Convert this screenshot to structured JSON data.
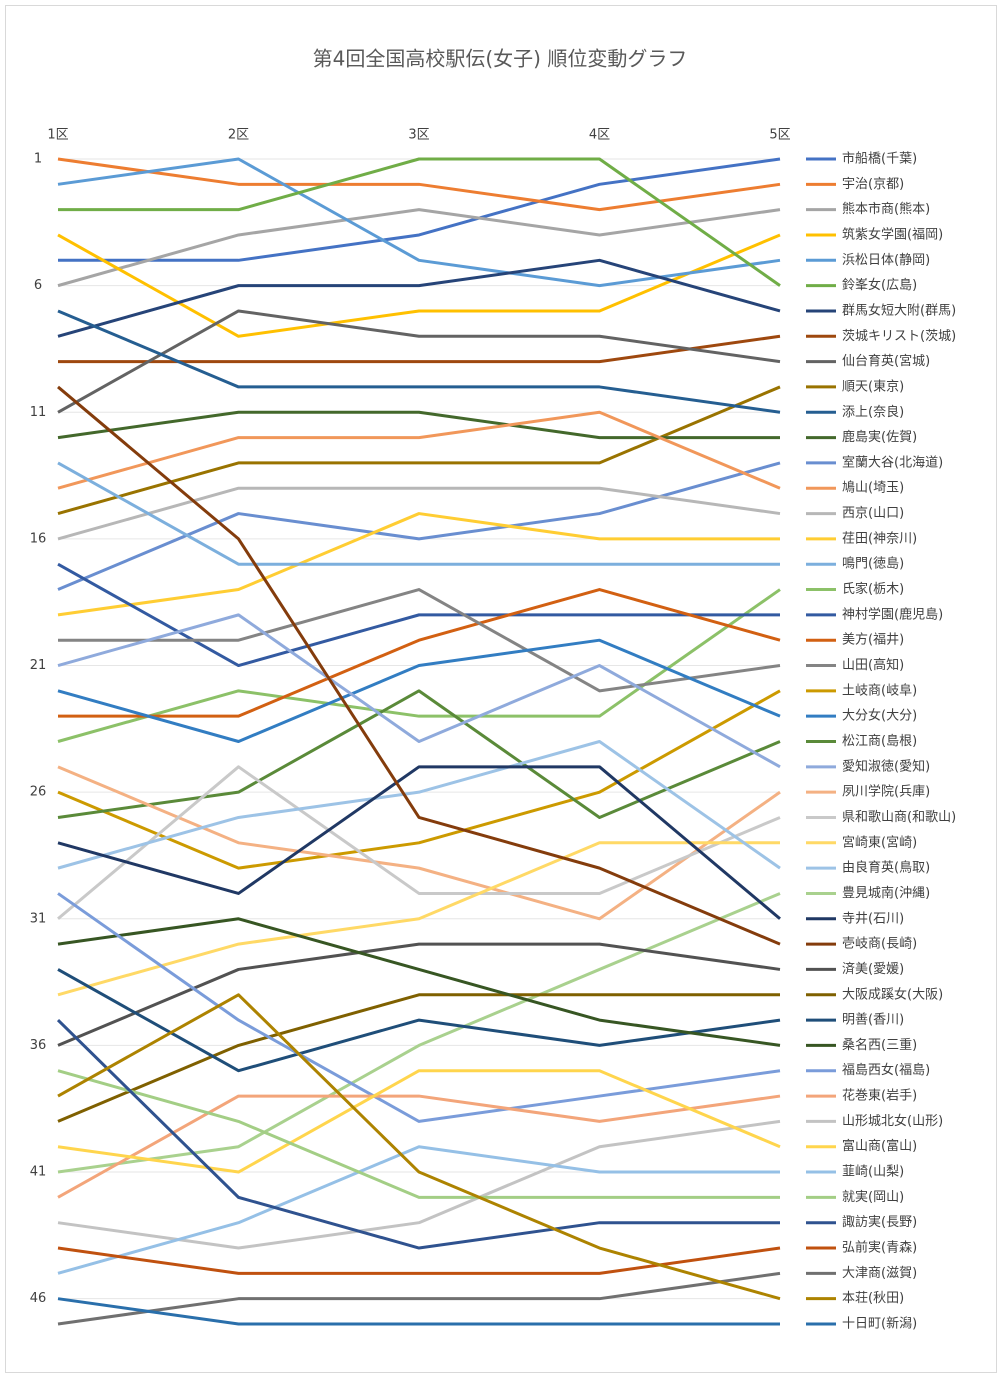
{
  "chart_data": {
    "type": "line",
    "title": "第4回全国高校駅伝(女子) 順位変動グラフ",
    "categories": [
      "1区",
      "2区",
      "3区",
      "4区",
      "5区"
    ],
    "ylim": [
      47,
      1
    ],
    "yticks": [
      1,
      6,
      11,
      16,
      21,
      26,
      31,
      36,
      41,
      46
    ],
    "grid": true,
    "legend": "right",
    "series": [
      {
        "name": "市船橋(千葉)",
        "color": "#4472C4",
        "values": [
          5,
          5,
          4,
          2,
          1
        ]
      },
      {
        "name": "宇治(京都)",
        "color": "#ED7D31",
        "values": [
          1,
          2,
          2,
          3,
          2
        ]
      },
      {
        "name": "熊本市商(熊本)",
        "color": "#A5A5A5",
        "values": [
          6,
          4,
          3,
          4,
          3
        ]
      },
      {
        "name": "筑紫女学園(福岡)",
        "color": "#FFC000",
        "values": [
          4,
          8,
          7,
          7,
          4
        ]
      },
      {
        "name": "浜松日体(静岡)",
        "color": "#5B9BD5",
        "values": [
          2,
          1,
          5,
          6,
          5
        ]
      },
      {
        "name": "鈴峯女(広島)",
        "color": "#70AD47",
        "values": [
          3,
          3,
          1,
          1,
          6
        ]
      },
      {
        "name": "群馬女短大附(群馬)",
        "color": "#264478",
        "values": [
          8,
          6,
          6,
          5,
          7
        ]
      },
      {
        "name": "茨城キリスト(茨城)",
        "color": "#9E480E",
        "values": [
          9,
          9,
          9,
          9,
          8
        ]
      },
      {
        "name": "仙台育英(宮城)",
        "color": "#636363",
        "values": [
          11,
          7,
          8,
          8,
          9
        ]
      },
      {
        "name": "順天(東京)",
        "color": "#997300",
        "values": [
          15,
          13,
          13,
          13,
          10
        ]
      },
      {
        "name": "添上(奈良)",
        "color": "#255E91",
        "values": [
          7,
          10,
          10,
          10,
          11
        ]
      },
      {
        "name": "鹿島実(佐賀)",
        "color": "#43682B",
        "values": [
          12,
          11,
          11,
          12,
          12
        ]
      },
      {
        "name": "室蘭大谷(北海道)",
        "color": "#698ED0",
        "values": [
          18,
          15,
          16,
          15,
          13
        ]
      },
      {
        "name": "鳩山(埼玉)",
        "color": "#F1975A",
        "values": [
          14,
          12,
          12,
          11,
          14
        ]
      },
      {
        "name": "西京(山口)",
        "color": "#B7B7B7",
        "values": [
          16,
          14,
          14,
          14,
          15
        ]
      },
      {
        "name": "荏田(神奈川)",
        "color": "#FFCD33",
        "values": [
          19,
          18,
          15,
          16,
          16
        ]
      },
      {
        "name": "鳴門(徳島)",
        "color": "#7CAFDD",
        "values": [
          13,
          17,
          17,
          17,
          17
        ]
      },
      {
        "name": "氏家(栃木)",
        "color": "#8CC168",
        "values": [
          24,
          22,
          23,
          23,
          18
        ]
      },
      {
        "name": "神村学園(鹿児島)",
        "color": "#335AA1",
        "values": [
          17,
          21,
          19,
          19,
          19
        ]
      },
      {
        "name": "美方(福井)",
        "color": "#D26012",
        "values": [
          23,
          23,
          20,
          18,
          20
        ]
      },
      {
        "name": "山田(高知)",
        "color": "#848484",
        "values": [
          20,
          20,
          18,
          22,
          21
        ]
      },
      {
        "name": "土岐商(岐阜)",
        "color": "#CC9A00",
        "values": [
          26,
          29,
          28,
          26,
          22
        ]
      },
      {
        "name": "大分女(大分)",
        "color": "#327DC2",
        "values": [
          22,
          24,
          21,
          20,
          23
        ]
      },
      {
        "name": "松江商(島根)",
        "color": "#5A8A39",
        "values": [
          27,
          26,
          22,
          27,
          24
        ]
      },
      {
        "name": "愛知淑徳(愛知)",
        "color": "#8FAADC",
        "values": [
          21,
          19,
          24,
          21,
          25
        ]
      },
      {
        "name": "夙川学院(兵庫)",
        "color": "#F4B183",
        "values": [
          25,
          28,
          29,
          31,
          26
        ]
      },
      {
        "name": "県和歌山商(和歌山)",
        "color": "#C9C9C9",
        "values": [
          31,
          25,
          30,
          30,
          27
        ]
      },
      {
        "name": "宮崎東(宮崎)",
        "color": "#FFD966",
        "values": [
          34,
          32,
          31,
          28,
          28
        ]
      },
      {
        "name": "由良育英(鳥取)",
        "color": "#9DC3E6",
        "values": [
          29,
          27,
          26,
          24,
          29
        ]
      },
      {
        "name": "豊見城南(沖縄)",
        "color": "#A9D18E",
        "values": [
          41,
          40,
          36,
          33,
          30
        ]
      },
      {
        "name": "寺井(石川)",
        "color": "#203864",
        "values": [
          28,
          30,
          25,
          25,
          31
        ]
      },
      {
        "name": "壱岐商(長崎)",
        "color": "#843C0C",
        "values": [
          10,
          16,
          27,
          29,
          32
        ]
      },
      {
        "name": "済美(愛媛)",
        "color": "#525252",
        "values": [
          36,
          33,
          32,
          32,
          33
        ]
      },
      {
        "name": "大阪成蹊女(大阪)",
        "color": "#7F6000",
        "values": [
          39,
          36,
          34,
          34,
          34
        ]
      },
      {
        "name": "明善(香川)",
        "color": "#1F4E79",
        "values": [
          33,
          37,
          35,
          36,
          35
        ]
      },
      {
        "name": "桑名西(三重)",
        "color": "#375623",
        "values": [
          32,
          31,
          33,
          35,
          36
        ]
      },
      {
        "name": "福島西女(福島)",
        "color": "#7A9CDA",
        "values": [
          30,
          35,
          39,
          38,
          37
        ]
      },
      {
        "name": "花巻東(岩手)",
        "color": "#F3A57A",
        "values": [
          42,
          38,
          38,
          39,
          38
        ]
      },
      {
        "name": "山形城北女(山形)",
        "color": "#C3C3C3",
        "values": [
          43,
          44,
          43,
          40,
          39
        ]
      },
      {
        "name": "富山商(富山)",
        "color": "#FFD54D",
        "values": [
          40,
          41,
          37,
          37,
          40
        ]
      },
      {
        "name": "韮崎(山梨)",
        "color": "#95C0E6",
        "values": [
          45,
          43,
          40,
          41,
          41
        ]
      },
      {
        "name": "就実(岡山)",
        "color": "#A3CE85",
        "values": [
          37,
          39,
          42,
          42,
          42
        ]
      },
      {
        "name": "諏訪実(長野)",
        "color": "#2F528F",
        "values": [
          35,
          42,
          44,
          43,
          43
        ]
      },
      {
        "name": "弘前実(青森)",
        "color": "#C0510F",
        "values": [
          44,
          45,
          45,
          45,
          44
        ]
      },
      {
        "name": "大津商(滋賀)",
        "color": "#707070",
        "values": [
          47,
          46,
          46,
          46,
          45
        ]
      },
      {
        "name": "本荘(秋田)",
        "color": "#AD8300",
        "values": [
          38,
          34,
          41,
          44,
          46
        ]
      },
      {
        "name": "十日町(新潟)",
        "color": "#2A6FAB",
        "values": [
          46,
          47,
          47,
          47,
          47
        ]
      }
    ]
  }
}
